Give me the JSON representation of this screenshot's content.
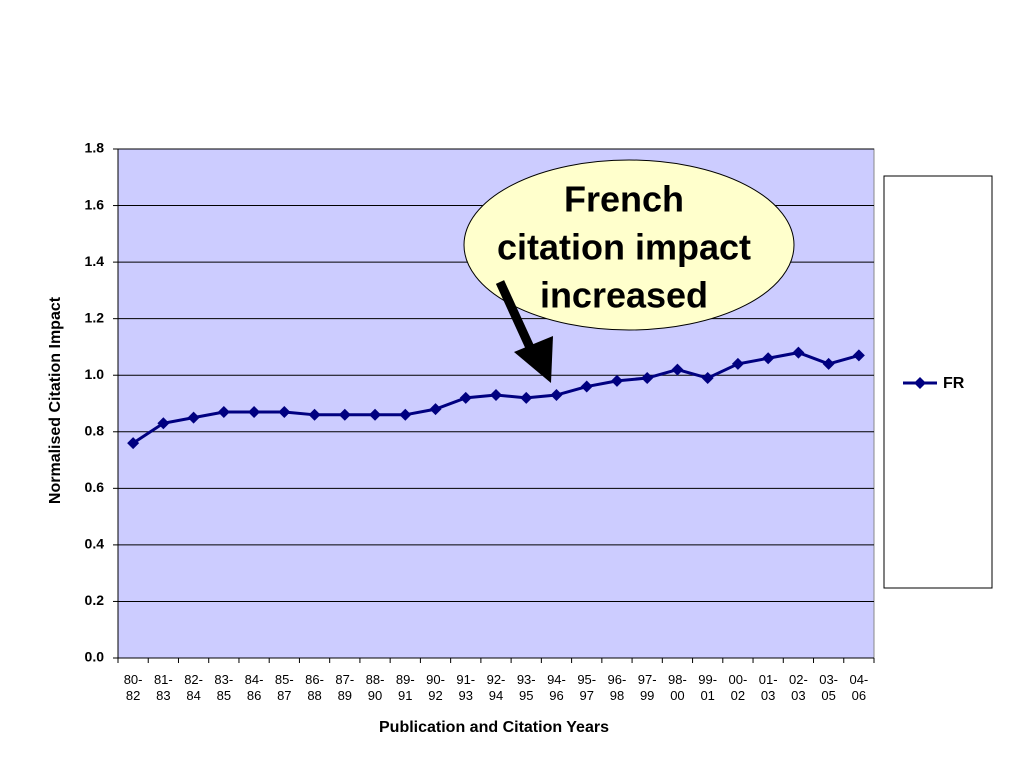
{
  "chart_data": {
    "type": "line",
    "x_label": "Publication and Citation Years",
    "y_label": "Normalised Citation Impact",
    "categories": [
      "80-82",
      "81-83",
      "82-84",
      "83-85",
      "84-86",
      "85-87",
      "86-88",
      "87-89",
      "88-90",
      "89-91",
      "90-92",
      "91-93",
      "92-94",
      "93-95",
      "94-96",
      "95-97",
      "96-98",
      "97-99",
      "98-00",
      "99-01",
      "00-02",
      "01-03",
      "02-03",
      "03-05",
      "04-06"
    ],
    "series": [
      {
        "name": "FR",
        "color": "#000080",
        "values": [
          0.76,
          0.83,
          0.85,
          0.87,
          0.87,
          0.87,
          0.86,
          0.86,
          0.86,
          0.86,
          0.88,
          0.92,
          0.93,
          0.92,
          0.93,
          0.96,
          0.98,
          0.99,
          1.02,
          0.99,
          1.04,
          1.06,
          1.08,
          1.04,
          1.07
        ]
      }
    ],
    "ylim": [
      0,
      1.8
    ],
    "yticks": [
      {
        "value": 0,
        "label": "0.0"
      },
      0.2,
      0.4,
      0.6,
      0.8,
      {
        "value": 1,
        "label": "1.0"
      },
      1.2,
      1.4,
      1.6,
      1.8
    ],
    "grid": true,
    "plot_background": "#ccccff",
    "legend": "right",
    "annotation": {
      "lines": [
        "French",
        "citation impact",
        "increased"
      ],
      "background": "#ffffcc"
    }
  }
}
